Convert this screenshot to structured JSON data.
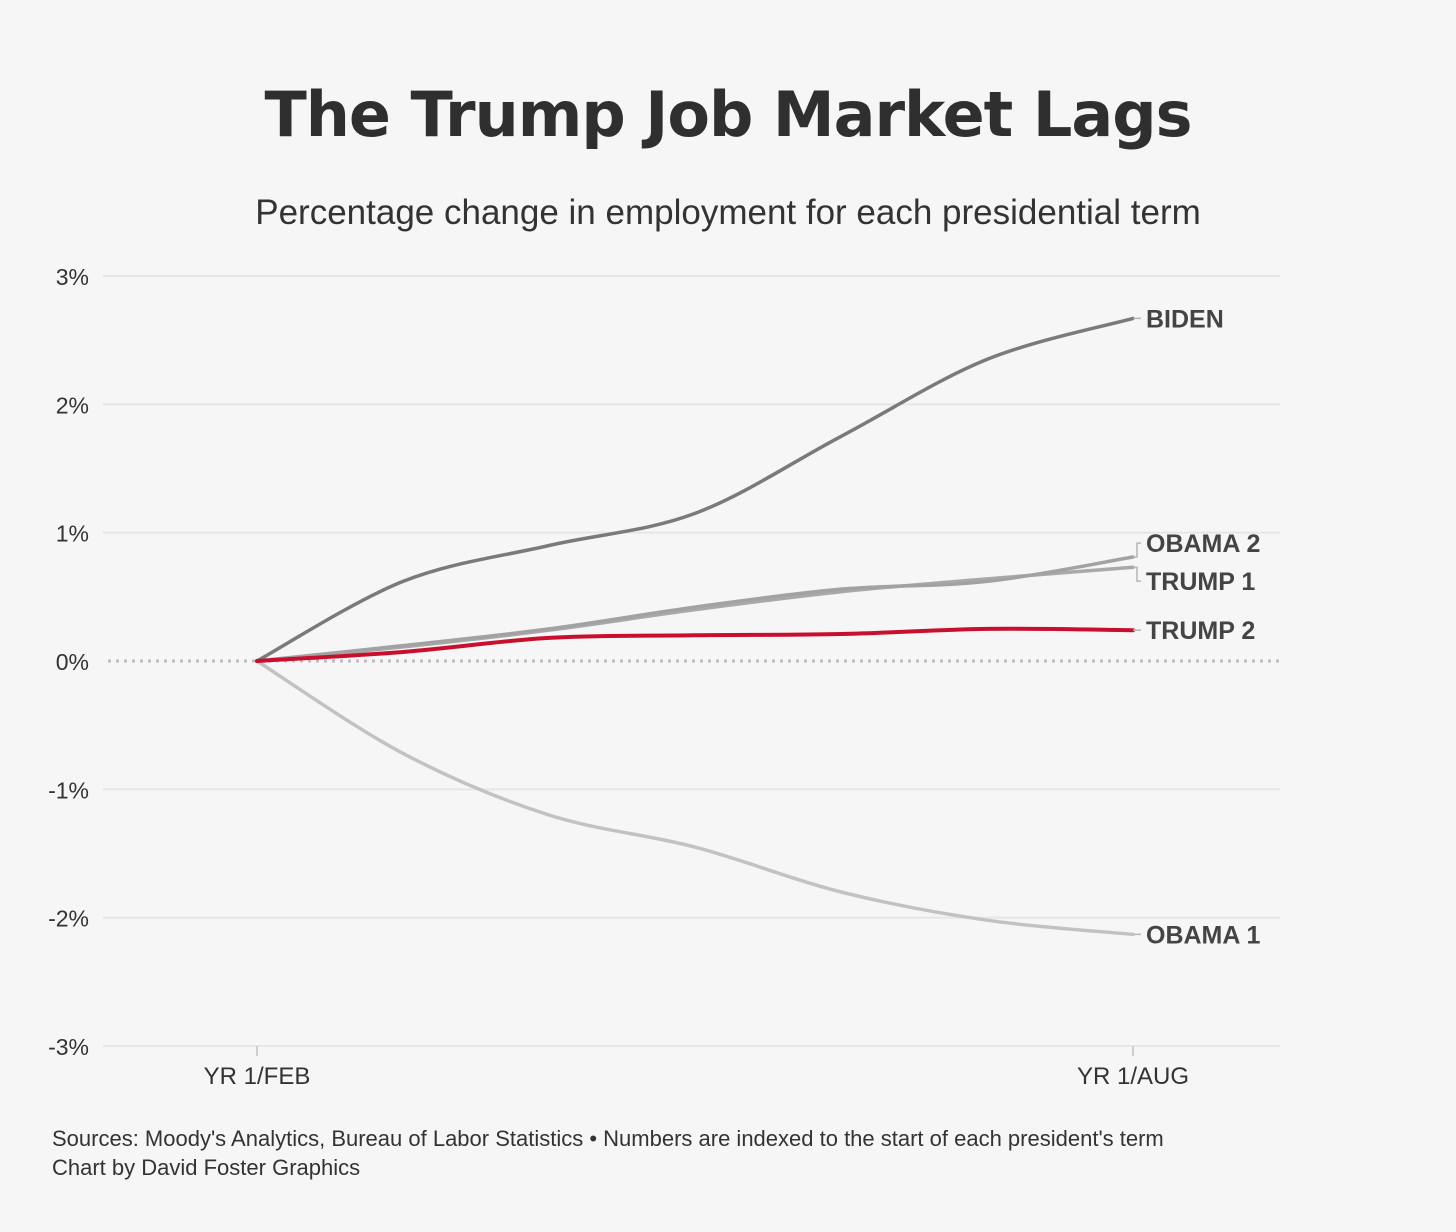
{
  "title": "The Trump Job Market Lags",
  "subtitle": "Percentage change in employment for each presidential term",
  "footer": {
    "sources": "Sources: Moody's Analytics, Bureau of Labor Statistics • Numbers are indexed to the start of each president's term",
    "credit": "Chart by David Foster Graphics"
  },
  "chart_data": {
    "type": "line",
    "title": "The Trump Job Market Lags",
    "subtitle": "Percentage change in employment for each presidential term",
    "xlabel": "",
    "ylabel": "",
    "x": [
      0,
      1,
      2,
      3,
      4,
      5,
      6
    ],
    "x_tick_labels": [
      {
        "x": 0,
        "label": "YR 1/FEB"
      },
      {
        "x": 6,
        "label": "YR 1/AUG"
      }
    ],
    "ylim": [
      -3,
      3
    ],
    "y_ticks": [
      3,
      2,
      1,
      0,
      -1,
      -2,
      -3
    ],
    "y_tick_labels": [
      "3%",
      "2%",
      "1%",
      "0%",
      "-1%",
      "-2%",
      "-3%"
    ],
    "grid": true,
    "zero_line": "dotted",
    "series": [
      {
        "name": "BIDEN",
        "color": "#7a7a7a",
        "values": [
          0,
          0.62,
          0.9,
          1.15,
          1.75,
          2.35,
          2.67
        ]
      },
      {
        "name": "OBAMA 2",
        "color": "#a2a2a2",
        "values": [
          0,
          0.12,
          0.25,
          0.42,
          0.56,
          0.62,
          0.81
        ]
      },
      {
        "name": "TRUMP 1",
        "color": "#a9a9a9",
        "values": [
          0,
          0.11,
          0.24,
          0.4,
          0.54,
          0.64,
          0.73
        ]
      },
      {
        "name": "TRUMP 2",
        "color": "#c8102e",
        "values": [
          0,
          0.07,
          0.18,
          0.2,
          0.21,
          0.25,
          0.24
        ]
      },
      {
        "name": "OBAMA 1",
        "color": "#c2c2c2",
        "values": [
          0,
          -0.72,
          -1.2,
          -1.45,
          -1.8,
          -2.02,
          -2.13
        ]
      }
    ],
    "labels": [
      {
        "series": "BIDEN",
        "text": "BIDEN"
      },
      {
        "series": "OBAMA 2",
        "text": "OBAMA 2"
      },
      {
        "series": "TRUMP 1",
        "text": "TRUMP 1"
      },
      {
        "series": "TRUMP 2",
        "text": "TRUMP 2"
      },
      {
        "series": "OBAMA 1",
        "text": "OBAMA 1"
      }
    ]
  }
}
